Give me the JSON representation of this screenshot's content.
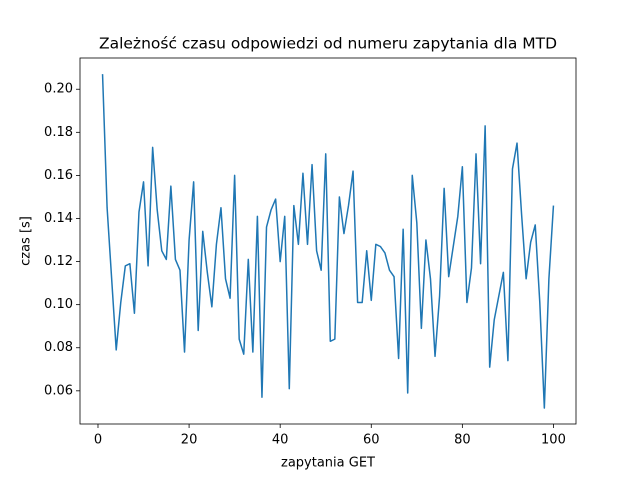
{
  "chart_data": {
    "type": "line",
    "title": "Zależność czasu odpowiedzi od numeru zapytania dla MTD",
    "x_label": "zapytania GET",
    "y_label": "czas [s]",
    "x": [
      1,
      2,
      3,
      4,
      5,
      6,
      7,
      8,
      9,
      10,
      11,
      12,
      13,
      14,
      15,
      16,
      17,
      18,
      19,
      20,
      21,
      22,
      23,
      24,
      25,
      26,
      27,
      28,
      29,
      30,
      31,
      32,
      33,
      34,
      35,
      36,
      37,
      38,
      39,
      40,
      41,
      42,
      43,
      44,
      45,
      46,
      47,
      48,
      49,
      50,
      51,
      52,
      53,
      54,
      55,
      56,
      57,
      58,
      59,
      60,
      61,
      62,
      63,
      64,
      65,
      66,
      67,
      68,
      69,
      70,
      71,
      72,
      73,
      74,
      75,
      76,
      77,
      78,
      79,
      80,
      81,
      82,
      83,
      84,
      85,
      86,
      87,
      88,
      89,
      90,
      91,
      92,
      93,
      94,
      95,
      96,
      97,
      98,
      99,
      100
    ],
    "series": [
      {
        "color": "#1f77b4",
        "values": [
          0.207,
          0.145,
          0.112,
          0.079,
          0.101,
          0.118,
          0.119,
          0.096,
          0.143,
          0.157,
          0.118,
          0.173,
          0.144,
          0.125,
          0.121,
          0.155,
          0.121,
          0.116,
          0.078,
          0.13,
          0.157,
          0.088,
          0.134,
          0.115,
          0.099,
          0.128,
          0.145,
          0.112,
          0.103,
          0.16,
          0.084,
          0.077,
          0.121,
          0.078,
          0.141,
          0.057,
          0.136,
          0.144,
          0.149,
          0.12,
          0.141,
          0.061,
          0.146,
          0.128,
          0.161,
          0.128,
          0.165,
          0.125,
          0.116,
          0.17,
          0.083,
          0.084,
          0.15,
          0.133,
          0.146,
          0.162,
          0.101,
          0.101,
          0.125,
          0.102,
          0.128,
          0.127,
          0.124,
          0.116,
          0.113,
          0.075,
          0.135,
          0.059,
          0.16,
          0.138,
          0.089,
          0.13,
          0.112,
          0.076,
          0.104,
          0.154,
          0.113,
          0.127,
          0.141,
          0.164,
          0.101,
          0.117,
          0.17,
          0.119,
          0.183,
          0.071,
          0.093,
          0.104,
          0.115,
          0.074,
          0.163,
          0.175,
          0.142,
          0.112,
          0.129,
          0.137,
          0.101,
          0.052,
          0.112,
          0.146
        ]
      }
    ],
    "xlim": [
      -3.95,
      104.95
    ],
    "xticks": [
      0,
      20,
      40,
      60,
      80,
      100
    ],
    "ylim": [
      0.0446,
      0.2145
    ],
    "yticks": [
      0.06,
      0.08,
      {
        "value": 0.1,
        "label": "0.10"
      },
      0.12,
      0.14,
      0.16,
      0.18,
      {
        "value": 0.2,
        "label": "0.20"
      }
    ]
  }
}
